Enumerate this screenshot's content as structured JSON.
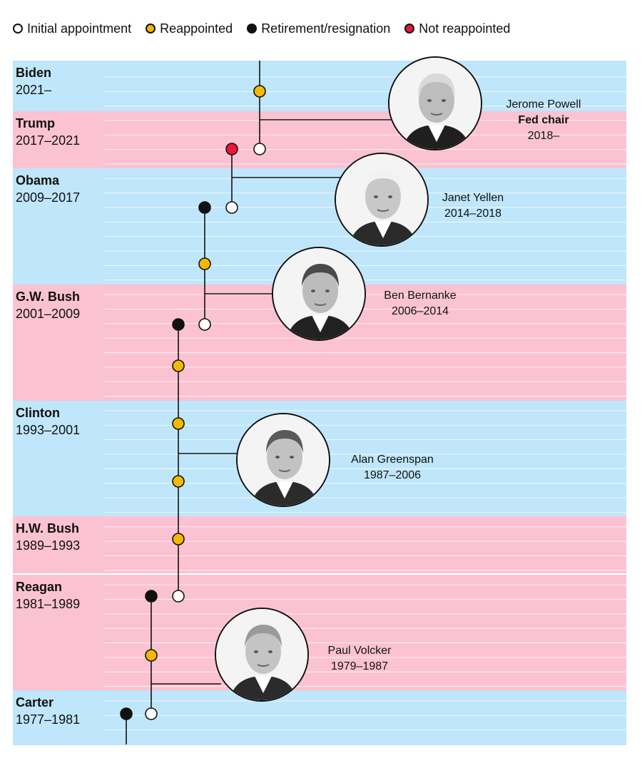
{
  "legend": [
    {
      "label": "Initial appointment",
      "color": "#ffffff"
    },
    {
      "label": "Reappointed",
      "color": "#f5b800"
    },
    {
      "label": "Retirement/resignation",
      "color": "#111111"
    },
    {
      "label": "Not reappointed",
      "color": "#e8173c"
    }
  ],
  "colors": {
    "democrat": "#bfe6fa",
    "republican": "#fbc2d2",
    "line": "#111111"
  },
  "presidents": [
    {
      "name": "Biden",
      "term": "2021–",
      "party": "democrat"
    },
    {
      "name": "Trump",
      "term": "2017–2021",
      "party": "republican"
    },
    {
      "name": "Obama",
      "term": "2009–2017",
      "party": "democrat"
    },
    {
      "name": "G.W. Bush",
      "term": "2001–2009",
      "party": "republican"
    },
    {
      "name": "Clinton",
      "term": "1993–2001",
      "party": "democrat"
    },
    {
      "name": "H.W. Bush",
      "term": "1989–1993",
      "party": "republican"
    },
    {
      "name": "Reagan",
      "term": "1981–1989",
      "party": "republican"
    },
    {
      "name": "Carter",
      "term": "1977–1981",
      "party": "democrat"
    }
  ],
  "chairs": [
    {
      "name": "Jerome Powell",
      "role": "Fed chair",
      "term": "2018–"
    },
    {
      "name": "Janet Yellen",
      "role": "",
      "term": "2014–2018"
    },
    {
      "name": "Ben Bernanke",
      "role": "",
      "term": "2006–2014"
    },
    {
      "name": "Alan Greenspan",
      "role": "",
      "term": "1987–2006"
    },
    {
      "name": "Paul Volcker",
      "role": "",
      "term": "1979–1987"
    }
  ]
}
